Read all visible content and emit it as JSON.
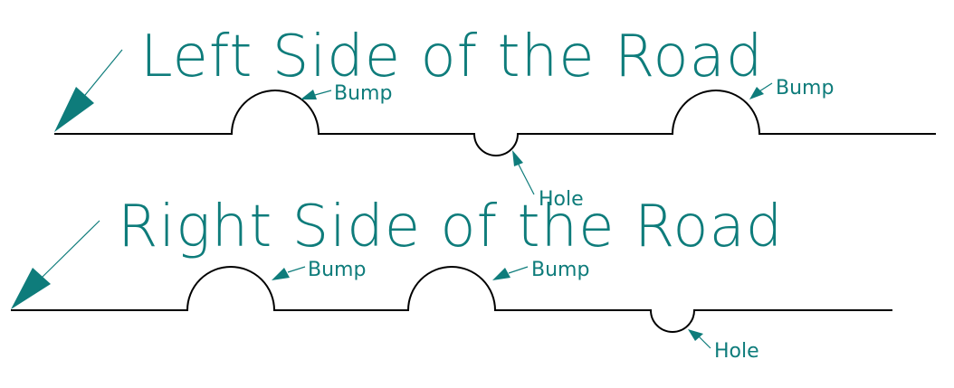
{
  "colors": {
    "annotation": "#0e7c7b",
    "road": "#000000",
    "background": "#ffffff"
  },
  "diagram": {
    "left_road": {
      "title": "Left Side of the Road",
      "labels": {
        "bump_1": "Bump",
        "bump_2": "Bump",
        "hole_1": "Hole"
      }
    },
    "right_road": {
      "title": "Right Side of the Road",
      "labels": {
        "bump_1": "Bump",
        "bump_2": "Bump",
        "hole_1": "Hole"
      }
    }
  }
}
